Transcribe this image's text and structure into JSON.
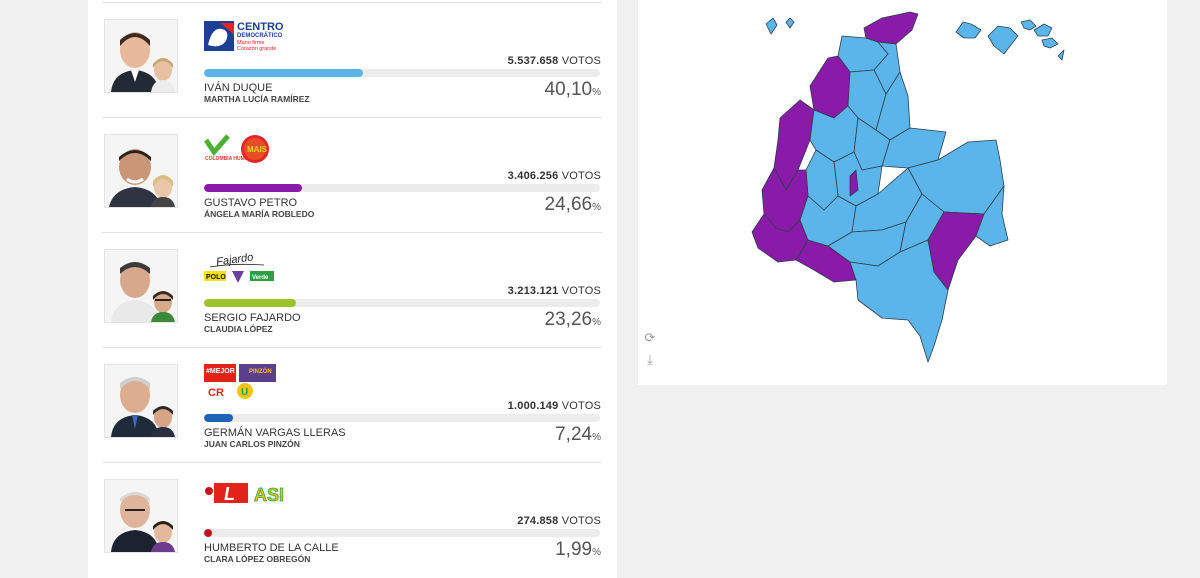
{
  "candidates": [
    {
      "name": "IVÁN DUQUE",
      "running_mate": "MARTHA LUCÍA RAMÍREZ",
      "votes": "5.537.658",
      "votes_unit": "VOTOS",
      "percent": "40,10",
      "percent_symbol": "%",
      "share": 0.401,
      "color": "#5bb5ea",
      "logo": {
        "title": "CENTRO",
        "subtitle": "DEMOCRÁTICO",
        "slogan1": "Mano firme",
        "slogan2": "Corazón grande"
      }
    },
    {
      "name": "GUSTAVO PETRO",
      "running_mate": "ÁNGELA MARÍA ROBLEDO",
      "votes": "3.406.256",
      "votes_unit": "VOTOS",
      "percent": "24,66",
      "percent_symbol": "%",
      "share": 0.2466,
      "color": "#8a1aa8",
      "logo": {
        "a": "COLOMBIA HUMANA",
        "b": "MAIS"
      }
    },
    {
      "name": "SERGIO FAJARDO",
      "running_mate": "CLAUDIA LÓPEZ",
      "votes": "3.213.121",
      "votes_unit": "VOTOS",
      "percent": "23,26",
      "percent_symbol": "%",
      "share": 0.2326,
      "color": "#9bc428",
      "logo": {
        "signature": "Fajardo",
        "a": "POLO",
        "b": "Verde"
      }
    },
    {
      "name": "GERMÁN VARGAS LLERAS",
      "running_mate": "JUAN CARLOS PINZÓN",
      "votes": "1.000.149",
      "votes_unit": "VOTOS",
      "percent": "7,24",
      "percent_symbol": "%",
      "share": 0.0724,
      "color": "#1f64b4",
      "logo": {
        "a": "#MEJOR",
        "b": "PINZÓN",
        "c": "CR",
        "d": "U"
      }
    },
    {
      "name": "HUMBERTO DE LA CALLE",
      "running_mate": "CLARA LÓPEZ OBREGÓN",
      "votes": "274.858",
      "votes_unit": "VOTOS",
      "percent": "1,99",
      "percent_symbol": "%",
      "share": 0.0199,
      "color": "#c1121f",
      "logo": {
        "a": "L",
        "b": "ASI"
      }
    }
  ],
  "map": {
    "tools": [
      {
        "icon": "refresh-icon",
        "glyph": "⟳"
      },
      {
        "icon": "download-icon",
        "glyph": "⤓"
      }
    ],
    "colors": {
      "duque": "#5bb5ea",
      "petro": "#8a1aa8",
      "border": "#2c3f4a"
    }
  }
}
